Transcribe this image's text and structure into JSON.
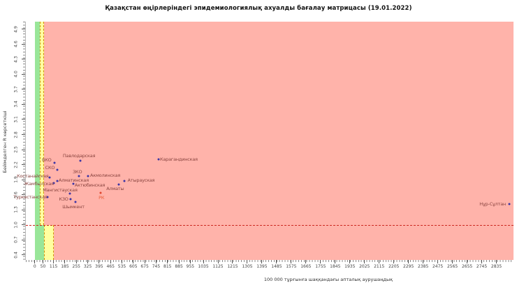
{
  "header": {
    "title": "Қазақстан өңірлеріндегі эпидемиологиялық ахуалды бағалау матрицасы  (19.01.2022)"
  },
  "chart_data": {
    "type": "scatter",
    "title": "Қазақстан өңірлеріндегі эпидемиологиялық ахуалды бағалау матрицасы  (19.01.2022)",
    "xlabel": "100 000 тұрғынға шаққандағы апталық аурушаңдық",
    "ylabel": "Бейімделген R көрсеткіші",
    "xlim": [
      -55,
      2940
    ],
    "ylim": [
      0.3,
      5.05
    ],
    "grid": false,
    "legend": "none",
    "x_ticks": [
      0,
      50,
      115,
      185,
      255,
      325,
      395,
      465,
      535,
      605,
      675,
      745,
      815,
      885,
      955,
      1035,
      1125,
      1215,
      1305,
      1395,
      1485,
      1575,
      1665,
      1755,
      1845,
      1935,
      2025,
      2115,
      2205,
      2295,
      2385,
      2475,
      2565,
      2655,
      2745,
      2835
    ],
    "y_ticks": [
      0.4,
      0.7,
      1.0,
      1.3,
      1.6,
      1.9,
      2.2,
      2.5,
      2.8,
      3.1,
      3.4,
      3.7,
      4.0,
      4.3,
      4.6,
      4.9
    ],
    "threshold_line": {
      "axis": "y",
      "value": 1.0,
      "style": "dashed",
      "color": "#cc2720"
    },
    "zones": {
      "description": "white left of x=0; above R=1: green 0-28.75, yellow 28.75-57.5, red beyond; below R=1: green 0-57.5, yellow 57.5-115, red beyond",
      "r_split": 1.0,
      "above": {
        "green": [
          0,
          28.75
        ],
        "yellow": [
          28.75,
          57.5
        ]
      },
      "below": {
        "green": [
          0,
          57.5
        ],
        "yellow": [
          57.5,
          115
        ]
      },
      "colors": {
        "green": "#99e699",
        "yellow": "#ffffa0",
        "red": "#ffb3aa",
        "outside": "#ffffff"
      },
      "dash_border_color": "#cf8f08"
    },
    "point_style": {
      "region_dot": "#3c35a5",
      "region_label": "#8a4540",
      "highlight_dot": "#e0472e",
      "highlight_label": "#e8603a"
    },
    "points": [
      {
        "name": "Павлодарская",
        "x": 280,
        "y": 2.28,
        "lx": -2,
        "ly": -7,
        "highlight": false
      },
      {
        "name": "Карагандинская",
        "x": 760,
        "y": 2.31,
        "lx": 29,
        "ly": 0,
        "highlight": false
      },
      {
        "name": "ВКО",
        "x": 120,
        "y": 2.24,
        "lx": -11,
        "ly": -4,
        "highlight": false
      },
      {
        "name": "СКО",
        "x": 140,
        "y": 2.1,
        "lx": -11,
        "ly": -3,
        "highlight": false
      },
      {
        "name": "Костанайская",
        "x": 90,
        "y": 1.95,
        "lx": -24,
        "ly": -2,
        "highlight": false
      },
      {
        "name": "ЗКО",
        "x": 270,
        "y": 1.97,
        "lx": -2,
        "ly": -6,
        "highlight": false
      },
      {
        "name": "Акмолинская",
        "x": 325,
        "y": 1.97,
        "lx": 25,
        "ly": -1,
        "highlight": false
      },
      {
        "name": "Жамбылская",
        "x": 115,
        "y": 1.83,
        "lx": -21,
        "ly": 1,
        "highlight": false
      },
      {
        "name": "Алматинская",
        "x": 140,
        "y": 1.87,
        "lx": 23,
        "ly": -1,
        "highlight": false
      },
      {
        "name": "Актюбинская",
        "x": 235,
        "y": 1.82,
        "lx": 24,
        "ly": 2,
        "highlight": false
      },
      {
        "name": "Атырауская",
        "x": 550,
        "y": 1.87,
        "lx": 24,
        "ly": -1,
        "highlight": false
      },
      {
        "name": "Алматы",
        "x": 515,
        "y": 1.81,
        "lx": -5,
        "ly": 6,
        "highlight": false
      },
      {
        "name": "РК",
        "x": 405,
        "y": 1.64,
        "lx": 1,
        "ly": 7,
        "highlight": true
      },
      {
        "name": "Мангистауская",
        "x": 215,
        "y": 1.63,
        "lx": -14,
        "ly": -5,
        "highlight": false
      },
      {
        "name": "Туркестанская",
        "x": 80,
        "y": 1.55,
        "lx": -25,
        "ly": 0,
        "highlight": false
      },
      {
        "name": "КЗО",
        "x": 220,
        "y": 1.51,
        "lx": -10,
        "ly": 0,
        "highlight": false
      },
      {
        "name": "Шымкент",
        "x": 250,
        "y": 1.45,
        "lx": -3,
        "ly": 7,
        "highlight": false
      },
      {
        "name": "Нұр-Сұлтан",
        "x": 2915,
        "y": 1.41,
        "lx": -24,
        "ly": 0,
        "highlight": false
      }
    ]
  }
}
